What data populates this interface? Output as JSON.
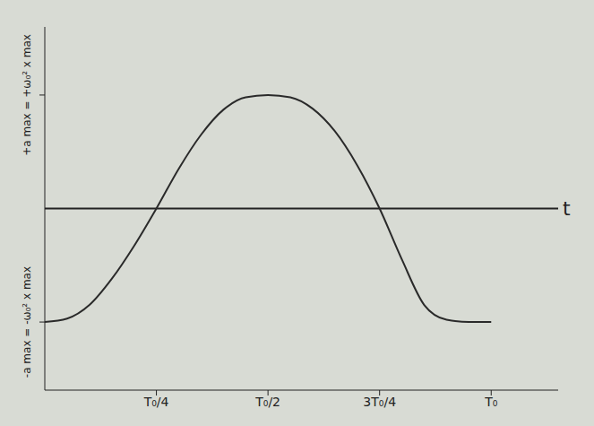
{
  "chart_data": {
    "type": "line",
    "xlabel": "t",
    "x": [
      0,
      0.05,
      0.1,
      0.15,
      0.2,
      0.25,
      0.3,
      0.35,
      0.4,
      0.45,
      0.5,
      0.55,
      0.6,
      0.65,
      0.7,
      0.75,
      0.8,
      0.85,
      0.9,
      0.95,
      1.0
    ],
    "values": [
      -1,
      -0.97,
      -0.85,
      -0.62,
      -0.33,
      0,
      0.35,
      0.65,
      0.87,
      0.98,
      1,
      0.98,
      0.88,
      0.68,
      0.38,
      0,
      -0.45,
      -0.85,
      -0.98,
      -1,
      -1
    ],
    "color": "#2a2a2a",
    "xlim": [
      0,
      1.15
    ],
    "xticks": [
      {
        "value": 0.25,
        "label": "T₀/4"
      },
      {
        "value": 0.5,
        "label": "T₀/2"
      },
      {
        "value": 0.75,
        "label": "3T₀/4"
      },
      {
        "value": 1,
        "label": "T₀"
      }
    ],
    "ylim": [
      -1.6,
      1.6
    ],
    "yticks": [
      {
        "value": -1,
        "label": "-a max = -ω₀² x max"
      },
      {
        "value": 1,
        "label": "+a max = +ω₀² x max"
      }
    ],
    "grid": false
  }
}
